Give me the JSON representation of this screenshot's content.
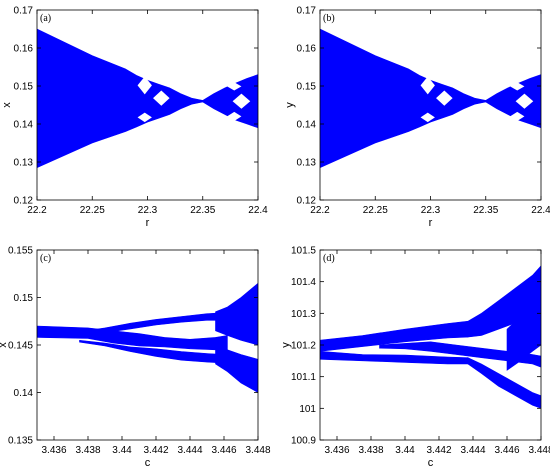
{
  "chart_data": [
    {
      "type": "area",
      "panel": "(a)",
      "xlabel": "r",
      "ylabel": "x",
      "xlim": [
        22.2,
        22.4
      ],
      "ylim": [
        0.12,
        0.17
      ],
      "xticks": [
        "22.2",
        "22.25",
        "22.3",
        "22.35",
        "22.4"
      ],
      "yticks": [
        "0.12",
        "0.13",
        "0.14",
        "0.15",
        "0.16",
        "0.17"
      ],
      "color": "#0000ff",
      "grid": false,
      "band": {
        "x": [
          22.2,
          22.25,
          22.28,
          22.29,
          22.3,
          22.31,
          22.32,
          22.33,
          22.34,
          22.35,
          22.36,
          22.37,
          22.38,
          22.39,
          22.4
        ],
        "upper": [
          0.165,
          0.158,
          0.1545,
          0.1528,
          0.1515,
          0.1505,
          0.1495,
          0.148,
          0.1468,
          0.1462,
          0.148,
          0.1495,
          0.1508,
          0.152,
          0.153
        ],
        "lower": [
          0.1285,
          0.135,
          0.138,
          0.1392,
          0.1405,
          0.1415,
          0.1425,
          0.144,
          0.1452,
          0.1458,
          0.144,
          0.1425,
          0.141,
          0.14,
          0.139
        ]
      },
      "windows": [
        {
          "x": [
            22.291,
            22.304
          ],
          "y": [
            0.1525,
            0.1478
          ]
        },
        {
          "x": [
            22.305,
            22.32
          ],
          "y": [
            0.1488,
            0.1448
          ]
        },
        {
          "x": [
            22.291,
            22.304
          ],
          "y": [
            0.143,
            0.1405
          ]
        },
        {
          "x": [
            22.372,
            22.385
          ],
          "y": [
            0.151,
            0.1488
          ]
        },
        {
          "x": [
            22.377,
            22.393
          ],
          "y": [
            0.148,
            0.144
          ]
        },
        {
          "x": [
            22.372,
            22.385
          ],
          "y": [
            0.1432,
            0.1408
          ]
        }
      ]
    },
    {
      "type": "area",
      "panel": "(b)",
      "xlabel": "r",
      "ylabel": "y",
      "xlim": [
        22.2,
        22.4
      ],
      "ylim": [
        0.12,
        0.17
      ],
      "xticks": [
        "22.2",
        "22.25",
        "22.3",
        "22.35",
        "22.4"
      ],
      "yticks": [
        "0.12",
        "0.13",
        "0.14",
        "0.15",
        "0.16",
        "0.17"
      ],
      "color": "#0000ff",
      "grid": false,
      "band": {
        "x": [
          22.2,
          22.25,
          22.28,
          22.29,
          22.3,
          22.31,
          22.32,
          22.33,
          22.34,
          22.35,
          22.36,
          22.37,
          22.38,
          22.39,
          22.4
        ],
        "upper": [
          0.165,
          0.158,
          0.1545,
          0.1528,
          0.1515,
          0.1505,
          0.1495,
          0.148,
          0.1468,
          0.1462,
          0.148,
          0.1495,
          0.1508,
          0.152,
          0.153
        ],
        "lower": [
          0.1285,
          0.135,
          0.138,
          0.1392,
          0.1405,
          0.1415,
          0.1425,
          0.144,
          0.1452,
          0.1458,
          0.144,
          0.1425,
          0.141,
          0.14,
          0.139
        ]
      },
      "windows": [
        {
          "x": [
            22.291,
            22.304
          ],
          "y": [
            0.1525,
            0.1478
          ]
        },
        {
          "x": [
            22.305,
            22.32
          ],
          "y": [
            0.1488,
            0.1448
          ]
        },
        {
          "x": [
            22.291,
            22.304
          ],
          "y": [
            0.143,
            0.1405
          ]
        },
        {
          "x": [
            22.372,
            22.385
          ],
          "y": [
            0.151,
            0.1488
          ]
        },
        {
          "x": [
            22.377,
            22.393
          ],
          "y": [
            0.148,
            0.144
          ]
        },
        {
          "x": [
            22.372,
            22.385
          ],
          "y": [
            0.1432,
            0.1408
          ]
        }
      ]
    },
    {
      "type": "area",
      "panel": "(c)",
      "xlabel": "c",
      "ylabel": "x",
      "xlim": [
        3.435,
        3.448
      ],
      "ylim": [
        0.135,
        0.155
      ],
      "xticks": [
        "3.436",
        "3.438",
        "3.44",
        "3.442",
        "3.444",
        "3.446",
        "3.448"
      ],
      "yticks": [
        "0.135",
        "0.14",
        "0.145",
        "0.15",
        "0.155"
      ],
      "color": "#0000ff",
      "grid": false,
      "bands": [
        {
          "x": [
            3.435,
            3.438,
            3.4395,
            3.441,
            3.4425,
            3.444,
            3.4455,
            3.4462
          ],
          "upper": [
            0.147,
            0.1468,
            0.1465,
            0.1462,
            0.1458,
            0.1456,
            0.1458,
            0.146
          ],
          "lower": [
            0.1458,
            0.1457,
            0.1452,
            0.1449,
            0.1448,
            0.1446,
            0.1445,
            0.1444
          ]
        },
        {
          "x": [
            3.4375,
            3.439,
            3.4405,
            3.442,
            3.4435,
            3.445,
            3.446
          ],
          "upper": [
            0.1464,
            0.1468,
            0.1473,
            0.1477,
            0.148,
            0.1483,
            0.1484
          ],
          "lower": [
            0.1461,
            0.1463,
            0.1467,
            0.1471,
            0.1474,
            0.1476,
            0.1476
          ]
        },
        {
          "x": [
            3.4375,
            3.439,
            3.4405,
            3.442,
            3.4435,
            3.445,
            3.446
          ],
          "upper": [
            0.1455,
            0.1452,
            0.1448,
            0.1446,
            0.1443,
            0.1441,
            0.144
          ],
          "lower": [
            0.1453,
            0.1449,
            0.1443,
            0.1438,
            0.1434,
            0.1432,
            0.1431
          ]
        },
        {
          "x": [
            3.4455,
            3.4462,
            3.447,
            3.448
          ],
          "upper": [
            0.1485,
            0.149,
            0.15,
            0.1515
          ],
          "lower": [
            0.1465,
            0.146,
            0.1455,
            0.145
          ]
        },
        {
          "x": [
            3.4455,
            3.4462,
            3.447,
            3.448
          ],
          "upper": [
            0.1448,
            0.1445,
            0.144,
            0.1435
          ],
          "lower": [
            0.143,
            0.1422,
            0.141,
            0.14
          ]
        }
      ]
    },
    {
      "type": "area",
      "panel": "(d)",
      "xlabel": "c",
      "ylabel": "y",
      "xlim": [
        3.435,
        3.448
      ],
      "ylim": [
        100.9,
        101.5
      ],
      "xticks": [
        "3.436",
        "3.438",
        "3.44",
        "3.442",
        "3.444",
        "3.446",
        "3.448"
      ],
      "yticks": [
        "100.9",
        "101",
        "101.1",
        "101.2",
        "101.3",
        "101.4",
        "101.5"
      ],
      "color": "#0000ff",
      "grid": false,
      "bands": [
        {
          "x": [
            3.435,
            3.4375,
            3.44,
            3.4425,
            3.4437
          ],
          "upper": [
            101.215,
            101.23,
            101.25,
            101.268,
            101.275
          ],
          "lower": [
            101.18,
            101.195,
            101.21,
            101.222,
            101.225
          ]
        },
        {
          "x": [
            3.435,
            3.4375,
            3.44,
            3.4425,
            3.4437
          ],
          "upper": [
            101.18,
            101.17,
            101.168,
            101.162,
            101.16
          ],
          "lower": [
            101.155,
            101.15,
            101.145,
            101.14,
            101.14
          ]
        },
        {
          "x": [
            3.4437,
            3.4445,
            3.4455,
            3.4465,
            3.4475,
            3.448
          ],
          "upper": [
            101.275,
            101.3,
            101.34,
            101.38,
            101.42,
            101.45
          ],
          "lower": [
            101.225,
            101.23,
            101.25,
            101.27,
            101.3,
            101.32
          ]
        },
        {
          "x": [
            3.4437,
            3.4445,
            3.4455,
            3.4465,
            3.4475,
            3.448
          ],
          "upper": [
            101.16,
            101.14,
            101.11,
            101.08,
            101.05,
            101.04
          ],
          "lower": [
            101.14,
            101.11,
            101.07,
            101.04,
            101.01,
            101.0
          ]
        },
        {
          "x": [
            3.4385,
            3.44,
            3.4415,
            3.443,
            3.4445,
            3.446,
            3.4475,
            3.448
          ],
          "upper": [
            101.2,
            101.205,
            101.21,
            101.2,
            101.19,
            101.18,
            101.17,
            101.165
          ],
          "lower": [
            101.19,
            101.188,
            101.18,
            101.17,
            101.16,
            101.15,
            101.14,
            101.13
          ]
        },
        {
          "x": [
            3.446,
            3.4468,
            3.4475,
            3.448
          ],
          "upper": [
            101.25,
            101.29,
            101.33,
            101.38
          ],
          "lower": [
            101.12,
            101.15,
            101.18,
            101.2
          ]
        }
      ]
    }
  ]
}
